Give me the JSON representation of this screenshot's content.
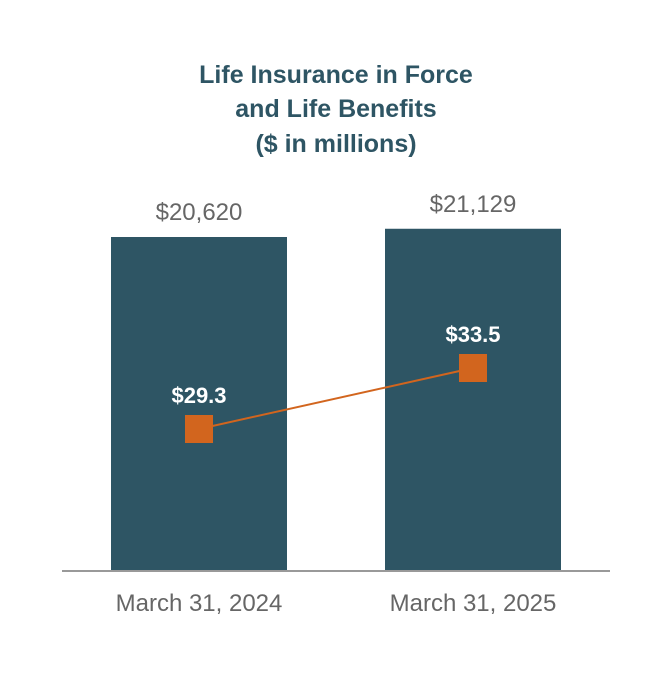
{
  "chart_data": {
    "type": "bar",
    "title_lines": [
      "Life Insurance in Force",
      "and Life Benefits",
      "($ in millions)"
    ],
    "categories": [
      "March 31, 2024",
      "March 31, 2025"
    ],
    "series": [
      {
        "type": "bar",
        "values": [
          20620,
          21129
        ],
        "labels": [
          "$20,620",
          "$21,129"
        ]
      },
      {
        "type": "line",
        "values": [
          29.3,
          33.5
        ],
        "labels": [
          "$29.3",
          "$33.5"
        ]
      }
    ],
    "colors": {
      "bar": "#2e5564",
      "line": "#d2651e",
      "title": "#2e5564",
      "text": "#666666",
      "axis": "#999999"
    }
  }
}
